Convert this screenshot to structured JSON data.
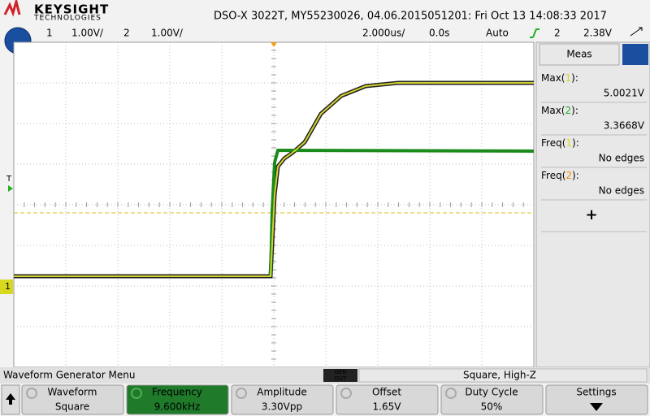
{
  "header": {
    "brand": "KEYSIGHT",
    "brand_sub": "TECHNOLOGIES",
    "title": "DSO-X 3022T, MY55230026, 04.06.2015051201: Fri Oct 13 14:08:33 2017"
  },
  "status": {
    "ch1": {
      "number": "1",
      "scale": "1.00V/"
    },
    "ch2": {
      "number": "2",
      "scale": "1.00V/"
    },
    "timebase": "2.000us/",
    "delay": "0.0s",
    "mode": "Auto",
    "trigger_source": "2",
    "trigger_level": "2.38V"
  },
  "markers": {
    "trigger": "T",
    "ground": "1"
  },
  "meas": {
    "tab": "Meas",
    "items": [
      {
        "prefix": "Max(",
        "channel": "1",
        "suffix": "):",
        "value": "5.0021V"
      },
      {
        "prefix": "Max(",
        "channel": "2",
        "suffix": "):",
        "value": "3.3668V"
      },
      {
        "prefix": "Freq(",
        "channel": "1",
        "suffix": "):",
        "value": "No edges"
      },
      {
        "prefix": "Freq(",
        "channel": "2",
        "suffix": "):",
        "value": "No edges"
      }
    ],
    "add": "+"
  },
  "menu": {
    "title": "Waveform Generator Menu",
    "gen_out": [
      "GEN",
      "OUT"
    ],
    "mode": "Square, High-Z",
    "softkeys": [
      {
        "label": "Waveform",
        "value": "Square"
      },
      {
        "label": "Frequency",
        "value": "9.600kHz"
      },
      {
        "label": "Amplitude",
        "value": "3.30Vpp"
      },
      {
        "label": "Offset",
        "value": "1.65V"
      },
      {
        "label": "Duty Cycle",
        "value": "50%"
      },
      {
        "label": "Settings"
      }
    ]
  }
}
